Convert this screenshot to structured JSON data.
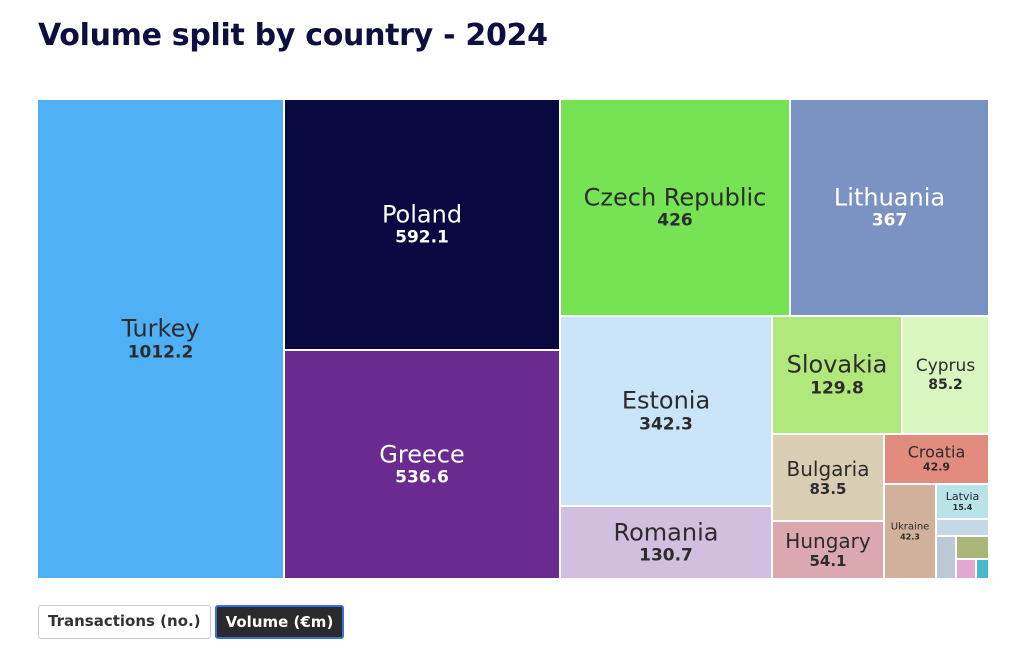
{
  "title": "Volume split by country - 2024",
  "buttons": {
    "transactions": "Transactions (no.)",
    "volume": "Volume (€m)"
  },
  "chart_data": {
    "type": "treemap",
    "title": "Volume split by country - 2024",
    "unit": "€m",
    "items": [
      {
        "name": "Turkey",
        "value": 1012.2,
        "value_label": "1012.2",
        "color": "#4fb0f5",
        "text": "#2c2c2c"
      },
      {
        "name": "Poland",
        "value": 592.1,
        "value_label": "592.1",
        "color": "#0a0840",
        "text": "#ffffff"
      },
      {
        "name": "Greece",
        "value": 536.6,
        "value_label": "536.6",
        "color": "#6b2a90",
        "text": "#ffffff"
      },
      {
        "name": "Czech Republic",
        "value": 426,
        "value_label": "426",
        "color": "#76e354",
        "text": "#2c2c2c"
      },
      {
        "name": "Lithuania",
        "value": 367,
        "value_label": "367",
        "color": "#7a93c3",
        "text": "#ffffff"
      },
      {
        "name": "Estonia",
        "value": 342.3,
        "value_label": "342.3",
        "color": "#c9e5f7",
        "text": "#2c2c2c"
      },
      {
        "name": "Romania",
        "value": 130.7,
        "value_label": "130.7",
        "color": "#d2bede",
        "text": "#2c2c2c"
      },
      {
        "name": "Slovakia",
        "value": 129.8,
        "value_label": "129.8",
        "color": "#b1e87b",
        "text": "#2c2c2c"
      },
      {
        "name": "Cyprus",
        "value": 85.2,
        "value_label": "85.2",
        "color": "#d9f5c0",
        "text": "#2c2c2c"
      },
      {
        "name": "Bulgaria",
        "value": 83.5,
        "value_label": "83.5",
        "color": "#d9ceb3",
        "text": "#2c2c2c"
      },
      {
        "name": "Hungary",
        "value": 54.1,
        "value_label": "54.1",
        "color": "#dba8b0",
        "text": "#2c2c2c"
      },
      {
        "name": "Croatia",
        "value": 42.9,
        "value_label": "42.9",
        "color": "#e28b7f",
        "text": "#2c2c2c"
      },
      {
        "name": "Ukraine",
        "value": 42.3,
        "value_label": "42.3",
        "color": "#d2b19c",
        "text": "#2c2c2c"
      },
      {
        "name": "Latvia",
        "value": 15.4,
        "value_label": "15.4",
        "color": "#b8e3e8",
        "text": "#2c2c2c"
      },
      {
        "name": "",
        "value": 6.9,
        "value_label": "",
        "color": "#c5d8e6",
        "text": "#2c2c2c"
      },
      {
        "name": "",
        "value": 6.1,
        "value_label": "",
        "color": "#bcc8d6",
        "text": "#2c2c2c"
      },
      {
        "name": "",
        "value": 6.3,
        "value_label": "",
        "color": "#a9b67a",
        "text": "#2c2c2c"
      },
      {
        "name": "",
        "value": 3.2,
        "value_label": "",
        "color": "#e3a7d4",
        "text": "#2c2c2c"
      },
      {
        "name": "",
        "value": 1.7,
        "value_label": "",
        "color": "#4ab8c9",
        "text": "#2c2c2c"
      }
    ]
  }
}
